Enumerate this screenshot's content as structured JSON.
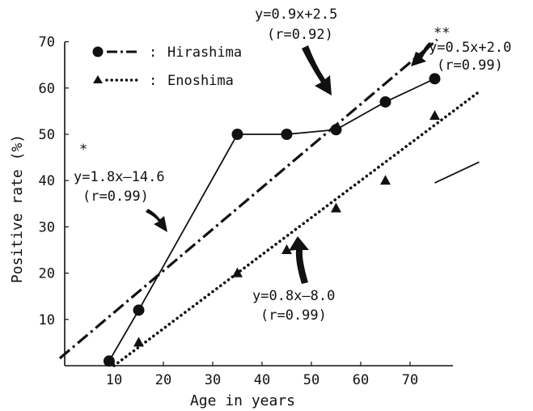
{
  "chart_data": {
    "type": "scatter",
    "title": "",
    "xlabel": "Age in years",
    "ylabel": "Positive rate (%)",
    "xlim": [
      0,
      80
    ],
    "ylim": [
      0,
      70
    ],
    "x_ticks": [
      10,
      20,
      30,
      40,
      50,
      60,
      70
    ],
    "y_ticks": [
      10,
      20,
      30,
      40,
      50,
      60,
      70
    ],
    "grid": false,
    "legend_position": "top-left",
    "series": [
      {
        "name": "Hirashima",
        "marker": "circle",
        "connect_points": true,
        "x": [
          9,
          15,
          35,
          45,
          55,
          65,
          75
        ],
        "y": [
          1,
          12,
          50,
          50,
          51,
          57,
          62
        ]
      },
      {
        "name": "Enoshima",
        "marker": "triangle",
        "connect_points": false,
        "x": [
          15,
          35,
          45,
          55,
          65,
          75
        ],
        "y": [
          5,
          20,
          25,
          34,
          40,
          54
        ]
      }
    ],
    "regression_lines": [
      {
        "series": "Hirashima",
        "style": "dash-dot",
        "slope": 0.9,
        "intercept": 2.5,
        "x_range": [
          -1,
          75.5
        ]
      },
      {
        "series": "Enoshima",
        "style": "dotted",
        "slope": 0.8,
        "intercept": -8.0,
        "x_range": [
          10,
          84
        ]
      },
      {
        "series": "Hirashima",
        "style": "solid",
        "slope": 0.5,
        "intercept": 2.0,
        "x_range": [
          75,
          84
        ]
      }
    ],
    "annotations": [
      {
        "marker": "*",
        "equation": "y=1.8x–14.6",
        "r": "(r=0.99)"
      },
      {
        "marker": "",
        "equation": "y=0.9x+2.5",
        "r": "(r=0.92)"
      },
      {
        "marker": "**",
        "equation": "y=0.5x+2.0",
        "r": "(r=0.99)"
      },
      {
        "marker": "",
        "equation": "y=0.8x–8.0",
        "r": "(r=0.99)"
      }
    ],
    "legend_separator": ":",
    "colors": {
      "ink": "#111111",
      "background": "#ffffff"
    }
  }
}
